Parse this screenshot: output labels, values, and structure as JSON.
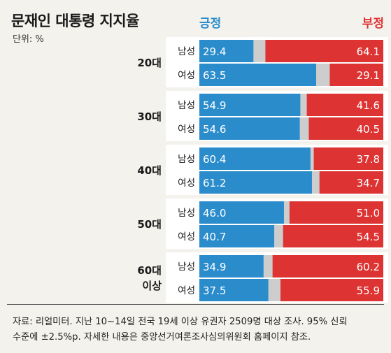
{
  "title": "문재인 대통령 지지율",
  "unit_label": "단위: %",
  "legend": {
    "positive": "긍정",
    "negative": "부정"
  },
  "colors": {
    "positive": "#2b8ccc",
    "negative": "#dd3333",
    "neutral": "#cdcdcd",
    "panel": "#ffffff",
    "background": "#f4f2ec",
    "text": "#1a1a1a"
  },
  "chart_data": {
    "type": "bar",
    "stacked": true,
    "orientation": "horizontal",
    "total": 100,
    "series": [
      {
        "name": "긍정",
        "color": "#2b8ccc"
      },
      {
        "name": "부정",
        "color": "#dd3333"
      }
    ],
    "groups": [
      {
        "age": "20대",
        "rows": [
          {
            "gender": "남성",
            "positive": 29.4,
            "negative": 64.1
          },
          {
            "gender": "여성",
            "positive": 63.5,
            "negative": 29.1
          }
        ]
      },
      {
        "age": "30대",
        "rows": [
          {
            "gender": "남성",
            "positive": 54.9,
            "negative": 41.6
          },
          {
            "gender": "여성",
            "positive": 54.6,
            "negative": 40.5
          }
        ]
      },
      {
        "age": "40대",
        "rows": [
          {
            "gender": "남성",
            "positive": 60.4,
            "negative": 37.8
          },
          {
            "gender": "여성",
            "positive": 61.2,
            "negative": 34.7
          }
        ]
      },
      {
        "age": "50대",
        "rows": [
          {
            "gender": "남성",
            "positive": 46.0,
            "negative": 51.0
          },
          {
            "gender": "여성",
            "positive": 40.7,
            "negative": 54.5
          }
        ]
      },
      {
        "age": "60대 이상",
        "age_lines": [
          "60대",
          "이상"
        ],
        "rows": [
          {
            "gender": "남성",
            "positive": 34.9,
            "negative": 60.2
          },
          {
            "gender": "여성",
            "positive": 37.5,
            "negative": 55.9
          }
        ]
      }
    ]
  },
  "source_lines": [
    "자료: 리얼미터. 지난 10~14일 전국 19세 이상 유권자 2509명 대상 조사. 95% 신뢰",
    "수준에 ±2.5%p. 자세한 내용은 중앙선거여론조사심의위원회 홈페이지 참조."
  ]
}
